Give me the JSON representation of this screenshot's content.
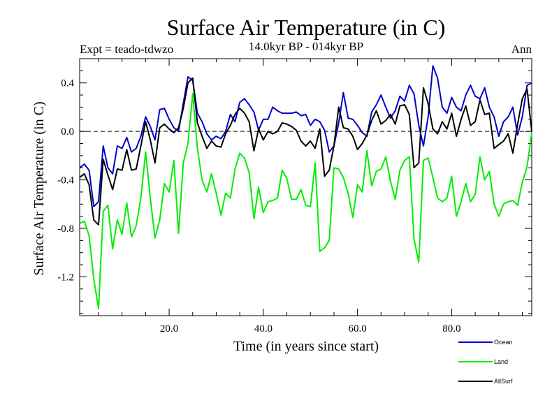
{
  "chart_data": {
    "type": "line",
    "title": "Surface Air Temperature (in C)",
    "subtitle": "14.0kyr BP - 014kyr BP",
    "left_label": "Expt = teado-tdwzo",
    "right_label": "Ann",
    "xlabel": "Time (in years since start)",
    "ylabel": "Surface Air Temperature (in C)",
    "xlim": [
      1,
      97
    ],
    "ylim": [
      -1.52,
      0.6
    ],
    "xticks_major": [
      20,
      40,
      60,
      80
    ],
    "xtick_labels": [
      "20.0",
      "40.0",
      "60.0",
      "80.0"
    ],
    "yticks_major": [
      0.4,
      0.0,
      -0.4,
      -0.8,
      -1.2
    ],
    "ytick_labels": [
      "0.4",
      "0.0",
      "-0.4",
      "-0.8",
      "-1.2"
    ],
    "zero_line": "dashed",
    "legend_position": "bottom-right",
    "series": [
      {
        "name": "Ocean",
        "color": "#0000cc",
        "x": [
          1,
          2,
          3,
          4,
          5,
          6,
          7,
          8,
          9,
          10,
          11,
          12,
          13,
          14,
          15,
          16,
          17,
          18,
          19,
          20,
          21,
          22,
          23,
          24,
          25,
          26,
          27,
          28,
          29,
          30,
          31,
          32,
          33,
          34,
          35,
          36,
          37,
          38,
          39,
          40,
          41,
          42,
          43,
          44,
          45,
          46,
          47,
          48,
          49,
          50,
          51,
          52,
          53,
          54,
          55,
          56,
          57,
          58,
          59,
          60,
          61,
          62,
          63,
          64,
          65,
          66,
          67,
          68,
          69,
          70,
          71,
          72,
          73,
          74,
          75,
          76,
          77,
          78,
          79,
          80,
          81,
          82,
          83,
          84,
          85,
          86,
          87,
          88,
          89,
          90,
          91,
          92,
          93,
          94,
          95,
          96,
          97
        ],
        "values": [
          -0.3,
          -0.27,
          -0.32,
          -0.62,
          -0.58,
          -0.12,
          -0.3,
          -0.35,
          -0.12,
          -0.14,
          -0.05,
          -0.17,
          -0.14,
          -0.04,
          0.12,
          0.04,
          -0.07,
          0.18,
          0.19,
          0.1,
          0.03,
          0.0,
          0.23,
          0.45,
          0.42,
          0.15,
          0.08,
          -0.02,
          -0.07,
          -0.04,
          -0.06,
          0.0,
          0.14,
          0.08,
          0.24,
          0.27,
          0.22,
          0.16,
          0.01,
          0.1,
          0.1,
          0.2,
          0.17,
          0.15,
          0.15,
          0.15,
          0.16,
          0.13,
          0.14,
          0.05,
          0.1,
          0.08,
          0.01,
          -0.17,
          -0.12,
          0.07,
          0.32,
          0.11,
          0.1,
          0.05,
          -0.01,
          -0.04,
          0.16,
          0.22,
          0.3,
          0.2,
          0.11,
          0.17,
          0.29,
          0.25,
          0.38,
          0.31,
          0.05,
          -0.12,
          0.12,
          0.54,
          0.44,
          0.2,
          0.15,
          0.28,
          0.2,
          0.17,
          0.3,
          0.38,
          0.29,
          0.27,
          0.36,
          0.2,
          0.12,
          -0.04,
          0.08,
          0.12,
          0.2,
          -0.03,
          0.12,
          0.38,
          0.4
        ]
      },
      {
        "name": "Land",
        "color": "#00ee00",
        "x": [
          1,
          2,
          3,
          4,
          5,
          6,
          7,
          8,
          9,
          10,
          11,
          12,
          13,
          14,
          15,
          16,
          17,
          18,
          19,
          20,
          21,
          22,
          23,
          24,
          25,
          26,
          27,
          28,
          29,
          30,
          31,
          32,
          33,
          34,
          35,
          36,
          37,
          38,
          39,
          40,
          41,
          42,
          43,
          44,
          45,
          46,
          47,
          48,
          49,
          50,
          51,
          52,
          53,
          54,
          55,
          56,
          57,
          58,
          59,
          60,
          61,
          62,
          63,
          64,
          65,
          66,
          67,
          68,
          69,
          70,
          71,
          72,
          73,
          74,
          75,
          76,
          77,
          78,
          79,
          80,
          81,
          82,
          83,
          84,
          85,
          86,
          87,
          88,
          89,
          90,
          91,
          92,
          93,
          94,
          95,
          96,
          97
        ],
        "values": [
          -0.76,
          -0.74,
          -0.86,
          -1.22,
          -1.46,
          -0.66,
          -0.61,
          -0.97,
          -0.73,
          -0.85,
          -0.59,
          -0.87,
          -0.78,
          -0.55,
          -0.17,
          -0.55,
          -0.88,
          -0.73,
          -0.43,
          -0.5,
          -0.24,
          -0.84,
          -0.26,
          -0.1,
          0.31,
          -0.14,
          -0.4,
          -0.5,
          -0.35,
          -0.51,
          -0.69,
          -0.51,
          -0.55,
          -0.31,
          -0.18,
          -0.22,
          -0.34,
          -0.72,
          -0.46,
          -0.67,
          -0.58,
          -0.57,
          -0.55,
          -0.32,
          -0.39,
          -0.56,
          -0.56,
          -0.48,
          -0.61,
          -0.62,
          -0.26,
          -0.99,
          -0.96,
          -0.9,
          -0.3,
          -0.31,
          -0.38,
          -0.51,
          -0.71,
          -0.44,
          -0.5,
          -0.16,
          -0.45,
          -0.33,
          -0.31,
          -0.21,
          -0.41,
          -0.56,
          -0.32,
          -0.24,
          -0.21,
          -0.89,
          -1.08,
          -0.24,
          -0.22,
          -0.38,
          -0.55,
          -0.58,
          -0.55,
          -0.37,
          -0.7,
          -0.58,
          -0.43,
          -0.58,
          -0.52,
          -0.21,
          -0.4,
          -0.33,
          -0.6,
          -0.7,
          -0.6,
          -0.58,
          -0.57,
          -0.61,
          -0.42,
          -0.29,
          -0.01
        ]
      },
      {
        "name": "AllSurf",
        "color": "#000000",
        "x": [
          1,
          2,
          3,
          4,
          5,
          6,
          7,
          8,
          9,
          10,
          11,
          12,
          13,
          14,
          15,
          16,
          17,
          18,
          19,
          20,
          21,
          22,
          23,
          24,
          25,
          26,
          27,
          28,
          29,
          30,
          31,
          32,
          33,
          34,
          35,
          36,
          37,
          38,
          39,
          40,
          41,
          42,
          43,
          44,
          45,
          46,
          47,
          48,
          49,
          50,
          51,
          52,
          53,
          54,
          55,
          56,
          57,
          58,
          59,
          60,
          61,
          62,
          63,
          64,
          65,
          66,
          67,
          68,
          69,
          70,
          71,
          72,
          73,
          74,
          75,
          76,
          77,
          78,
          79,
          80,
          81,
          82,
          83,
          84,
          85,
          86,
          87,
          88,
          89,
          90,
          91,
          92,
          93,
          94,
          95,
          96,
          97
        ],
        "values": [
          -0.38,
          -0.35,
          -0.44,
          -0.73,
          -0.77,
          -0.23,
          -0.36,
          -0.48,
          -0.31,
          -0.32,
          -0.15,
          -0.32,
          -0.31,
          -0.12,
          0.08,
          -0.07,
          -0.26,
          0.03,
          0.06,
          0.02,
          -0.01,
          0.03,
          0.19,
          0.4,
          0.44,
          0.07,
          -0.04,
          -0.14,
          -0.08,
          -0.12,
          -0.13,
          -0.02,
          0.05,
          0.14,
          0.19,
          0.15,
          0.08,
          -0.16,
          0.02,
          -0.07,
          0.0,
          -0.02,
          0.0,
          0.07,
          0.06,
          0.04,
          0.01,
          -0.08,
          -0.12,
          -0.08,
          -0.14,
          0.02,
          -0.37,
          -0.32,
          -0.12,
          0.2,
          0.03,
          0.02,
          -0.04,
          -0.15,
          -0.1,
          -0.03,
          0.09,
          0.17,
          0.06,
          0.09,
          0.14,
          0.06,
          0.21,
          0.22,
          0.14,
          -0.3,
          -0.26,
          0.36,
          0.23,
          0.02,
          -0.02,
          0.08,
          0.02,
          0.15,
          -0.04,
          0.1,
          0.21,
          0.05,
          0.08,
          0.26,
          0.14,
          0.15,
          -0.14,
          -0.11,
          -0.08,
          -0.02,
          -0.18,
          0.06,
          0.27,
          0.35,
          0.0
        ]
      }
    ]
  }
}
